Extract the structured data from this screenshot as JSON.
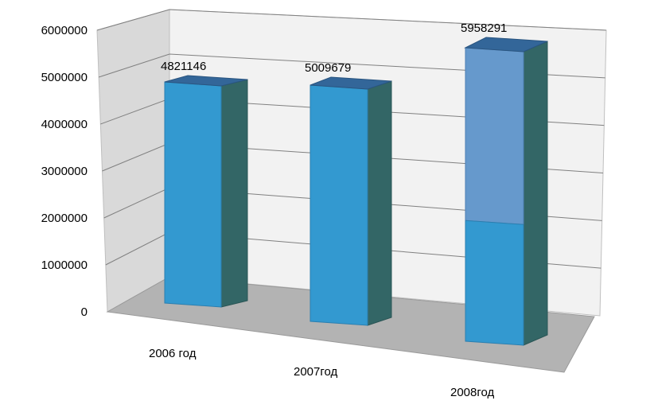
{
  "chart_data": {
    "type": "bar",
    "categories": [
      "2006 год",
      "2007год",
      "2008год"
    ],
    "values": [
      4821146,
      5009679,
      5958291
    ],
    "data_labels": [
      "4821146",
      "5009679",
      "5958291"
    ],
    "stack_split_value_2008": 2450000,
    "ylim": [
      0,
      6000000
    ],
    "yticks": [
      "0",
      "1000000",
      "2000000",
      "3000000",
      "4000000",
      "5000000",
      "6000000"
    ],
    "ytick_values": [
      0,
      1000000,
      2000000,
      3000000,
      4000000,
      5000000,
      6000000
    ],
    "grid": true,
    "style": "3d-column",
    "legend": "none",
    "colors": {
      "front": "#3399D0",
      "front_upper": "#6699CC",
      "side": "#336666",
      "top": "#336699",
      "back_wall": "#F2F2F2",
      "side_wall": "#D9D9D9",
      "floor": "#B3B3B3",
      "gridline": "#808080"
    }
  }
}
